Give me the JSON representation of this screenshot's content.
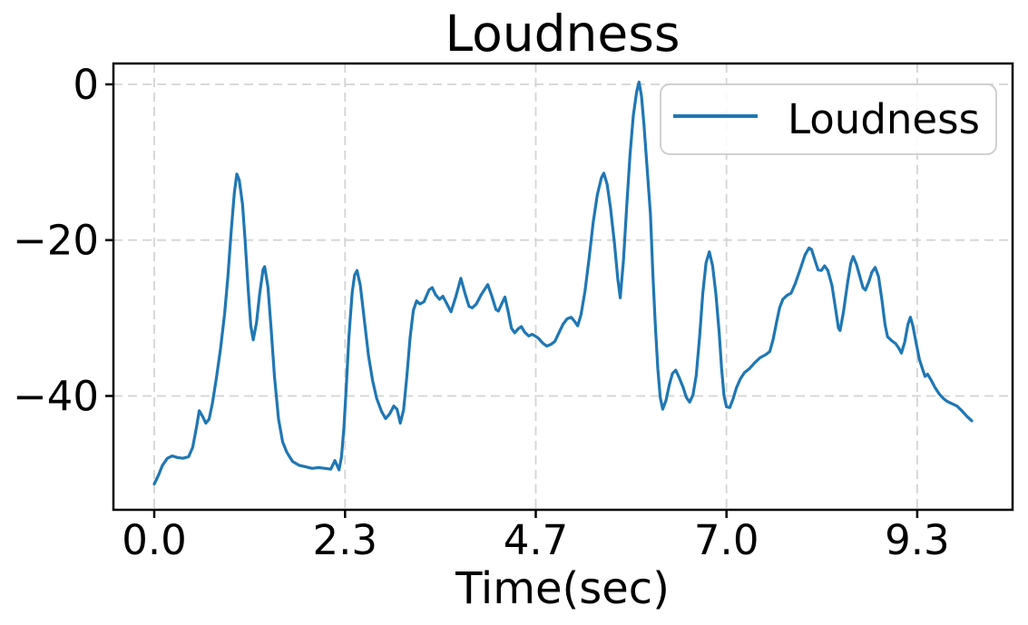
{
  "chart_data": {
    "type": "line",
    "title": "Loudness",
    "xlabel": "Time(sec)",
    "ylabel": "",
    "legend": {
      "position": "upper right",
      "entries": [
        {
          "label": "Loudness",
          "color": "#1f77b4"
        }
      ]
    },
    "grid": true,
    "grid_style": "dashed",
    "xlim": [
      -0.5,
      10.5
    ],
    "ylim": [
      -54.62,
      2.68
    ],
    "x_ticks": {
      "values": [
        0,
        2.3333,
        4.6667,
        7.0,
        9.3333
      ],
      "labels": [
        "0.0",
        "2.3",
        "4.7",
        "7.0",
        "9.3"
      ]
    },
    "y_ticks": {
      "values": [
        0,
        -20,
        -40
      ],
      "labels": [
        "0",
        "−20",
        "−40"
      ]
    },
    "colors": {
      "line": "#1f77b4",
      "grid": "#d4d4d4",
      "axis": "#000000",
      "legend_border": "#cccccc",
      "background": "#ffffff"
    },
    "series": [
      {
        "name": "Loudness",
        "color": "#1f77b4",
        "points": [
          [
            0.0,
            -51.3
          ],
          [
            0.05,
            -50.2
          ],
          [
            0.1,
            -48.9
          ],
          [
            0.16,
            -48.0
          ],
          [
            0.22,
            -47.7
          ],
          [
            0.28,
            -47.9
          ],
          [
            0.35,
            -48.0
          ],
          [
            0.42,
            -47.8
          ],
          [
            0.47,
            -46.6
          ],
          [
            0.52,
            -43.8
          ],
          [
            0.55,
            -41.9
          ],
          [
            0.59,
            -42.6
          ],
          [
            0.63,
            -43.5
          ],
          [
            0.67,
            -43.0
          ],
          [
            0.71,
            -41.0
          ],
          [
            0.76,
            -37.7
          ],
          [
            0.81,
            -34.0
          ],
          [
            0.86,
            -29.5
          ],
          [
            0.9,
            -24.8
          ],
          [
            0.94,
            -19.0
          ],
          [
            0.98,
            -13.9
          ],
          [
            1.01,
            -11.5
          ],
          [
            1.04,
            -12.3
          ],
          [
            1.08,
            -15.4
          ],
          [
            1.11,
            -19.8
          ],
          [
            1.15,
            -26.4
          ],
          [
            1.18,
            -31.0
          ],
          [
            1.21,
            -32.8
          ],
          [
            1.25,
            -30.6
          ],
          [
            1.29,
            -26.8
          ],
          [
            1.33,
            -23.8
          ],
          [
            1.35,
            -23.4
          ],
          [
            1.39,
            -26.0
          ],
          [
            1.43,
            -31.5
          ],
          [
            1.47,
            -37.5
          ],
          [
            1.52,
            -43.0
          ],
          [
            1.57,
            -45.9
          ],
          [
            1.62,
            -47.2
          ],
          [
            1.69,
            -48.4
          ],
          [
            1.77,
            -48.9
          ],
          [
            1.85,
            -49.1
          ],
          [
            1.93,
            -49.3
          ],
          [
            2.01,
            -49.2
          ],
          [
            2.09,
            -49.3
          ],
          [
            2.16,
            -49.4
          ],
          [
            2.21,
            -48.3
          ],
          [
            2.26,
            -49.5
          ],
          [
            2.29,
            -47.8
          ],
          [
            2.32,
            -44.0
          ],
          [
            2.35,
            -38.5
          ],
          [
            2.38,
            -32.5
          ],
          [
            2.42,
            -26.8
          ],
          [
            2.45,
            -24.5
          ],
          [
            2.48,
            -23.9
          ],
          [
            2.52,
            -25.8
          ],
          [
            2.57,
            -30.3
          ],
          [
            2.62,
            -34.8
          ],
          [
            2.67,
            -38.0
          ],
          [
            2.72,
            -40.3
          ],
          [
            2.78,
            -42.0
          ],
          [
            2.83,
            -42.9
          ],
          [
            2.88,
            -42.3
          ],
          [
            2.93,
            -41.3
          ],
          [
            2.97,
            -41.7
          ],
          [
            3.01,
            -43.5
          ],
          [
            3.05,
            -41.8
          ],
          [
            3.09,
            -37.5
          ],
          [
            3.13,
            -32.5
          ],
          [
            3.17,
            -29.0
          ],
          [
            3.21,
            -27.8
          ],
          [
            3.25,
            -28.2
          ],
          [
            3.3,
            -27.9
          ],
          [
            3.36,
            -26.4
          ],
          [
            3.4,
            -26.1
          ],
          [
            3.44,
            -27.0
          ],
          [
            3.49,
            -27.6
          ],
          [
            3.53,
            -27.2
          ],
          [
            3.58,
            -28.2
          ],
          [
            3.63,
            -29.2
          ],
          [
            3.69,
            -27.2
          ],
          [
            3.75,
            -24.9
          ],
          [
            3.8,
            -26.8
          ],
          [
            3.85,
            -28.5
          ],
          [
            3.89,
            -28.7
          ],
          [
            3.94,
            -28.2
          ],
          [
            4.0,
            -27.0
          ],
          [
            4.08,
            -25.7
          ],
          [
            4.13,
            -27.2
          ],
          [
            4.18,
            -28.9
          ],
          [
            4.21,
            -29.1
          ],
          [
            4.25,
            -28.2
          ],
          [
            4.29,
            -27.3
          ],
          [
            4.33,
            -29.2
          ],
          [
            4.37,
            -31.3
          ],
          [
            4.41,
            -31.9
          ],
          [
            4.45,
            -31.4
          ],
          [
            4.49,
            -31.1
          ],
          [
            4.53,
            -31.8
          ],
          [
            4.58,
            -32.3
          ],
          [
            4.62,
            -32.1
          ],
          [
            4.66,
            -32.3
          ],
          [
            4.7,
            -32.6
          ],
          [
            4.75,
            -33.2
          ],
          [
            4.8,
            -33.6
          ],
          [
            4.85,
            -33.4
          ],
          [
            4.9,
            -33.0
          ],
          [
            4.95,
            -31.9
          ],
          [
            5.0,
            -30.8
          ],
          [
            5.05,
            -30.1
          ],
          [
            5.1,
            -29.9
          ],
          [
            5.14,
            -30.4
          ],
          [
            5.18,
            -31.0
          ],
          [
            5.22,
            -29.6
          ],
          [
            5.27,
            -26.5
          ],
          [
            5.32,
            -22.3
          ],
          [
            5.37,
            -17.7
          ],
          [
            5.42,
            -14.2
          ],
          [
            5.47,
            -12.0
          ],
          [
            5.5,
            -11.4
          ],
          [
            5.54,
            -12.8
          ],
          [
            5.58,
            -15.8
          ],
          [
            5.63,
            -20.5
          ],
          [
            5.67,
            -25.0
          ],
          [
            5.7,
            -27.4
          ],
          [
            5.74,
            -22.5
          ],
          [
            5.78,
            -15.5
          ],
          [
            5.82,
            -9.0
          ],
          [
            5.86,
            -4.0
          ],
          [
            5.9,
            -1.0
          ],
          [
            5.93,
            0.3
          ],
          [
            5.96,
            -1.5
          ],
          [
            5.99,
            -5.1
          ],
          [
            6.03,
            -10.9
          ],
          [
            6.07,
            -16.7
          ],
          [
            6.1,
            -24.5
          ],
          [
            6.13,
            -31.0
          ],
          [
            6.16,
            -36.5
          ],
          [
            6.19,
            -40.2
          ],
          [
            6.22,
            -41.7
          ],
          [
            6.26,
            -40.6
          ],
          [
            6.3,
            -38.6
          ],
          [
            6.34,
            -37.1
          ],
          [
            6.38,
            -36.7
          ],
          [
            6.42,
            -37.6
          ],
          [
            6.47,
            -38.9
          ],
          [
            6.51,
            -40.2
          ],
          [
            6.55,
            -40.8
          ],
          [
            6.59,
            -39.9
          ],
          [
            6.63,
            -37.4
          ],
          [
            6.67,
            -32.5
          ],
          [
            6.71,
            -26.8
          ],
          [
            6.75,
            -22.9
          ],
          [
            6.79,
            -21.5
          ],
          [
            6.83,
            -23.3
          ],
          [
            6.87,
            -26.9
          ],
          [
            6.91,
            -31.8
          ],
          [
            6.94,
            -36.5
          ],
          [
            6.97,
            -40.0
          ],
          [
            7.0,
            -41.4
          ],
          [
            7.04,
            -41.5
          ],
          [
            7.08,
            -40.4
          ],
          [
            7.12,
            -39.0
          ],
          [
            7.17,
            -37.8
          ],
          [
            7.22,
            -37.0
          ],
          [
            7.28,
            -36.5
          ],
          [
            7.34,
            -35.8
          ],
          [
            7.41,
            -35.1
          ],
          [
            7.48,
            -34.7
          ],
          [
            7.53,
            -34.3
          ],
          [
            7.57,
            -32.8
          ],
          [
            7.61,
            -30.7
          ],
          [
            7.65,
            -28.7
          ],
          [
            7.69,
            -27.6
          ],
          [
            7.74,
            -27.1
          ],
          [
            7.79,
            -26.8
          ],
          [
            7.84,
            -25.6
          ],
          [
            7.9,
            -23.8
          ],
          [
            7.96,
            -21.9
          ],
          [
            8.01,
            -21.0
          ],
          [
            8.04,
            -21.2
          ],
          [
            8.08,
            -22.5
          ],
          [
            8.12,
            -23.8
          ],
          [
            8.16,
            -23.9
          ],
          [
            8.2,
            -23.3
          ],
          [
            8.24,
            -23.9
          ],
          [
            8.29,
            -25.8
          ],
          [
            8.33,
            -28.5
          ],
          [
            8.37,
            -31.3
          ],
          [
            8.39,
            -31.6
          ],
          [
            8.43,
            -29.3
          ],
          [
            8.48,
            -25.6
          ],
          [
            8.52,
            -23.0
          ],
          [
            8.55,
            -22.1
          ],
          [
            8.59,
            -23.1
          ],
          [
            8.63,
            -24.6
          ],
          [
            8.67,
            -26.1
          ],
          [
            8.7,
            -26.4
          ],
          [
            8.74,
            -25.4
          ],
          [
            8.78,
            -24.1
          ],
          [
            8.82,
            -23.5
          ],
          [
            8.86,
            -24.7
          ],
          [
            8.9,
            -27.6
          ],
          [
            8.94,
            -30.9
          ],
          [
            8.97,
            -32.4
          ],
          [
            9.02,
            -32.9
          ],
          [
            9.07,
            -33.3
          ],
          [
            9.11,
            -33.9
          ],
          [
            9.14,
            -34.5
          ],
          [
            9.18,
            -33.1
          ],
          [
            9.22,
            -30.8
          ],
          [
            9.25,
            -29.9
          ],
          [
            9.28,
            -31.0
          ],
          [
            9.32,
            -33.2
          ],
          [
            9.36,
            -35.3
          ],
          [
            9.4,
            -36.6
          ],
          [
            9.43,
            -37.5
          ],
          [
            9.46,
            -37.2
          ],
          [
            9.5,
            -37.9
          ],
          [
            9.55,
            -38.9
          ],
          [
            9.6,
            -39.7
          ],
          [
            9.65,
            -40.3
          ],
          [
            9.7,
            -40.7
          ],
          [
            9.76,
            -41.0
          ],
          [
            9.82,
            -41.3
          ],
          [
            9.88,
            -41.9
          ],
          [
            9.94,
            -42.6
          ],
          [
            10.0,
            -43.2
          ]
        ]
      }
    ]
  }
}
